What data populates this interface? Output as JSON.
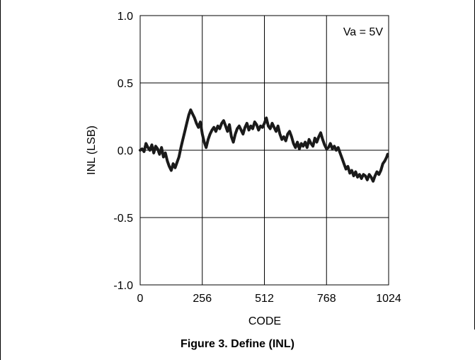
{
  "figure": {
    "caption": "Figure 3. Define (INL)"
  },
  "chart_data": {
    "type": "line",
    "title": "",
    "xlabel": "CODE",
    "ylabel": "INL (LSB)",
    "xlim": [
      0,
      1024
    ],
    "ylim": [
      -1.0,
      1.0
    ],
    "xticks": [
      0,
      256,
      512,
      768,
      1024
    ],
    "xtick_labels": [
      "0",
      "256",
      "512",
      "768",
      "1024"
    ],
    "yticks": [
      -1.0,
      -0.5,
      0.0,
      0.5,
      1.0
    ],
    "ytick_labels": [
      "-1.0",
      "-0.5",
      "0.0",
      "0.5",
      "1.0"
    ],
    "grid": true,
    "annotation": "Va = 5V",
    "line_color": "#1a1a1a",
    "series": [
      {
        "x": [
          0,
          8,
          16,
          24,
          32,
          40,
          48,
          56,
          64,
          72,
          80,
          88,
          96,
          104,
          112,
          120,
          128,
          136,
          144,
          152,
          160,
          168,
          176,
          184,
          192,
          200,
          208,
          216,
          224,
          232,
          240,
          248,
          256,
          264,
          272,
          280,
          288,
          296,
          304,
          312,
          320,
          328,
          336,
          344,
          352,
          360,
          368,
          376,
          384,
          392,
          400,
          408,
          416,
          424,
          432,
          440,
          448,
          456,
          464,
          472,
          480,
          488,
          496,
          504,
          512,
          520,
          528,
          536,
          544,
          552,
          560,
          568,
          576,
          584,
          592,
          600,
          608,
          616,
          624,
          632,
          640,
          648,
          656,
          664,
          672,
          680,
          688,
          696,
          704,
          712,
          720,
          728,
          736,
          744,
          752,
          760,
          768,
          776,
          784,
          792,
          800,
          808,
          816,
          824,
          832,
          840,
          848,
          856,
          864,
          872,
          880,
          888,
          896,
          904,
          912,
          920,
          928,
          936,
          944,
          952,
          960,
          968,
          976,
          984,
          992,
          1000,
          1008,
          1016,
          1020
        ],
        "y": [
          0.0,
          0.01,
          -0.01,
          0.05,
          0.02,
          0.0,
          0.04,
          -0.02,
          0.03,
          0.01,
          -0.03,
          0.02,
          -0.05,
          -0.02,
          -0.08,
          -0.12,
          -0.15,
          -0.1,
          -0.13,
          -0.09,
          -0.05,
          0.02,
          0.08,
          0.14,
          0.2,
          0.26,
          0.3,
          0.27,
          0.24,
          0.2,
          0.17,
          0.21,
          0.12,
          0.06,
          0.02,
          0.08,
          0.12,
          0.15,
          0.17,
          0.14,
          0.18,
          0.16,
          0.2,
          0.22,
          0.18,
          0.14,
          0.19,
          0.1,
          0.06,
          0.12,
          0.16,
          0.18,
          0.15,
          0.12,
          0.17,
          0.2,
          0.15,
          0.18,
          0.16,
          0.21,
          0.19,
          0.15,
          0.18,
          0.17,
          0.2,
          0.24,
          0.18,
          0.16,
          0.2,
          0.17,
          0.14,
          0.18,
          0.12,
          0.08,
          0.1,
          0.07,
          0.12,
          0.14,
          0.1,
          0.05,
          0.02,
          0.06,
          0.01,
          0.05,
          0.03,
          0.06,
          0.02,
          0.08,
          0.05,
          0.03,
          0.09,
          0.06,
          0.1,
          0.13,
          0.08,
          0.04,
          0.01,
          0.02,
          0.05,
          0.01,
          0.03,
          0.0,
          0.02,
          -0.02,
          -0.06,
          -0.1,
          -0.14,
          -0.12,
          -0.17,
          -0.15,
          -0.19,
          -0.16,
          -0.2,
          -0.18,
          -0.21,
          -0.18,
          -0.19,
          -0.22,
          -0.18,
          -0.2,
          -0.23,
          -0.19,
          -0.16,
          -0.18,
          -0.15,
          -0.1,
          -0.08,
          -0.05,
          -0.03
        ]
      }
    ]
  }
}
